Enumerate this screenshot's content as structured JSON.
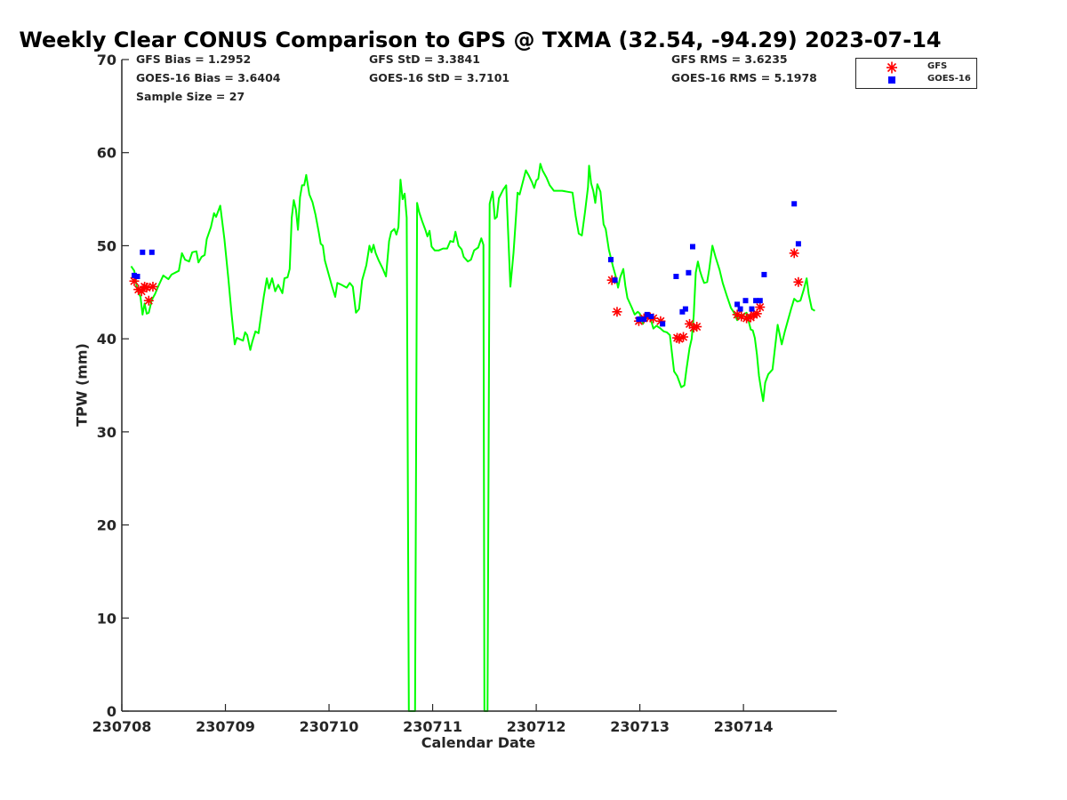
{
  "chart_data": {
    "type": "line",
    "title": "Weekly Clear CONUS Comparison to GPS @ TXMA (32.54, -94.29) 2023-07-14",
    "xlabel": "Calendar Date",
    "ylabel": "TPW (mm)",
    "xlim": [
      0,
      6.9
    ],
    "ylim": [
      0,
      70
    ],
    "x_ticks": [
      {
        "x": 0,
        "label": "230708"
      },
      {
        "x": 1,
        "label": "230709"
      },
      {
        "x": 2,
        "label": "230710"
      },
      {
        "x": 3,
        "label": "230711"
      },
      {
        "x": 4,
        "label": "230712"
      },
      {
        "x": 5,
        "label": "230713"
      },
      {
        "x": 6,
        "label": "230714"
      }
    ],
    "y_ticks": [
      0,
      10,
      20,
      30,
      40,
      50,
      60,
      70
    ],
    "stats": [
      {
        "label": "GFS Bias = 1.2952"
      },
      {
        "label": "GOES-16 Bias = 3.6404"
      },
      {
        "label": "Sample Size = 27"
      },
      {
        "label": "GFS StD = 3.3841"
      },
      {
        "label": "GOES-16 StD = 3.7101"
      },
      {
        "label": "GFS RMS = 3.6235"
      },
      {
        "label": "GOES-16 RMS = 5.1978"
      }
    ],
    "legend": {
      "placement": "top-right outside",
      "entries": [
        "GFS",
        "GOES-16"
      ]
    },
    "series": [
      {
        "name": "GPS",
        "style": "line",
        "color": "#00ff00",
        "points": [
          [
            0.09,
            47.8
          ],
          [
            0.12,
            47.3
          ],
          [
            0.15,
            45.2
          ],
          [
            0.18,
            44.5
          ],
          [
            0.2,
            42.6
          ],
          [
            0.22,
            43.8
          ],
          [
            0.24,
            42.7
          ],
          [
            0.26,
            42.8
          ],
          [
            0.29,
            44.2
          ],
          [
            0.32,
            44.8
          ],
          [
            0.35,
            45.6
          ],
          [
            0.4,
            46.8
          ],
          [
            0.45,
            46.4
          ],
          [
            0.48,
            46.9
          ],
          [
            0.55,
            47.3
          ],
          [
            0.58,
            49.2
          ],
          [
            0.61,
            48.5
          ],
          [
            0.65,
            48.3
          ],
          [
            0.68,
            49.3
          ],
          [
            0.72,
            49.4
          ],
          [
            0.74,
            48.2
          ],
          [
            0.77,
            48.8
          ],
          [
            0.8,
            49.0
          ],
          [
            0.82,
            50.7
          ],
          [
            0.86,
            52.0
          ],
          [
            0.89,
            53.5
          ],
          [
            0.91,
            53.1
          ],
          [
            0.95,
            54.3
          ],
          [
            0.99,
            50.7
          ],
          [
            1.03,
            46.3
          ],
          [
            1.06,
            42.6
          ],
          [
            1.09,
            39.4
          ],
          [
            1.11,
            40.1
          ],
          [
            1.17,
            39.8
          ],
          [
            1.19,
            40.7
          ],
          [
            1.21,
            40.4
          ],
          [
            1.24,
            38.8
          ],
          [
            1.26,
            39.7
          ],
          [
            1.29,
            40.8
          ],
          [
            1.32,
            40.6
          ],
          [
            1.37,
            44.5
          ],
          [
            1.4,
            46.5
          ],
          [
            1.42,
            45.4
          ],
          [
            1.45,
            46.5
          ],
          [
            1.48,
            45.1
          ],
          [
            1.51,
            45.8
          ],
          [
            1.55,
            44.9
          ],
          [
            1.57,
            46.5
          ],
          [
            1.6,
            46.6
          ],
          [
            1.62,
            47.5
          ],
          [
            1.64,
            53.0
          ],
          [
            1.66,
            54.9
          ],
          [
            1.68,
            53.9
          ],
          [
            1.7,
            51.7
          ],
          [
            1.72,
            55.2
          ],
          [
            1.74,
            56.5
          ],
          [
            1.76,
            56.5
          ],
          [
            1.78,
            57.6
          ],
          [
            1.81,
            55.5
          ],
          [
            1.84,
            54.7
          ],
          [
            1.87,
            53.3
          ],
          [
            1.9,
            51.5
          ],
          [
            1.92,
            50.2
          ],
          [
            1.94,
            50.0
          ],
          [
            1.96,
            48.4
          ],
          [
            2.0,
            46.8
          ],
          [
            2.03,
            45.6
          ],
          [
            2.06,
            44.5
          ],
          [
            2.08,
            46.0
          ],
          [
            2.12,
            45.8
          ],
          [
            2.17,
            45.5
          ],
          [
            2.2,
            46.0
          ],
          [
            2.23,
            45.6
          ],
          [
            2.26,
            42.8
          ],
          [
            2.29,
            43.2
          ],
          [
            2.32,
            46.3
          ],
          [
            2.36,
            47.9
          ],
          [
            2.39,
            50.0
          ],
          [
            2.41,
            49.3
          ],
          [
            2.43,
            50.1
          ],
          [
            2.45,
            49.2
          ],
          [
            2.48,
            48.4
          ],
          [
            2.52,
            47.5
          ],
          [
            2.55,
            46.7
          ],
          [
            2.58,
            50.5
          ],
          [
            2.6,
            51.5
          ],
          [
            2.63,
            51.8
          ],
          [
            2.65,
            51.2
          ],
          [
            2.67,
            52.0
          ],
          [
            2.69,
            57.1
          ],
          [
            2.71,
            55.0
          ],
          [
            2.73,
            55.6
          ],
          [
            2.75,
            53.0
          ],
          [
            2.77,
            0
          ],
          [
            2.79,
            0
          ],
          [
            2.81,
            0
          ],
          [
            2.83,
            0
          ],
          [
            2.85,
            54.6
          ],
          [
            2.87,
            53.6
          ],
          [
            2.9,
            52.6
          ],
          [
            2.93,
            51.7
          ],
          [
            2.95,
            51.0
          ],
          [
            2.97,
            51.6
          ],
          [
            2.99,
            49.9
          ],
          [
            3.02,
            49.5
          ],
          [
            3.06,
            49.5
          ],
          [
            3.1,
            49.7
          ],
          [
            3.14,
            49.7
          ],
          [
            3.17,
            50.5
          ],
          [
            3.2,
            50.4
          ],
          [
            3.22,
            51.5
          ],
          [
            3.25,
            50.0
          ],
          [
            3.28,
            49.6
          ],
          [
            3.3,
            48.8
          ],
          [
            3.34,
            48.3
          ],
          [
            3.37,
            48.5
          ],
          [
            3.4,
            49.5
          ],
          [
            3.44,
            49.8
          ],
          [
            3.47,
            50.8
          ],
          [
            3.49,
            50.1
          ],
          [
            3.5,
            0
          ],
          [
            3.51,
            0
          ],
          [
            3.53,
            0
          ],
          [
            3.55,
            54.5
          ],
          [
            3.57,
            55.4
          ],
          [
            3.58,
            55.8
          ],
          [
            3.6,
            52.9
          ],
          [
            3.62,
            53.1
          ],
          [
            3.64,
            55.1
          ],
          [
            3.68,
            56.0
          ],
          [
            3.71,
            56.5
          ],
          [
            3.75,
            45.6
          ],
          [
            3.78,
            49.2
          ],
          [
            3.8,
            52.4
          ],
          [
            3.82,
            55.7
          ],
          [
            3.84,
            55.5
          ],
          [
            3.86,
            56.4
          ],
          [
            3.9,
            58.1
          ],
          [
            3.93,
            57.5
          ],
          [
            3.96,
            56.8
          ],
          [
            3.98,
            56.2
          ],
          [
            4.0,
            57.0
          ],
          [
            4.02,
            57.2
          ],
          [
            4.04,
            58.8
          ],
          [
            4.06,
            58.1
          ],
          [
            4.1,
            57.3
          ],
          [
            4.13,
            56.5
          ],
          [
            4.15,
            56.2
          ],
          [
            4.17,
            55.9
          ],
          [
            4.2,
            55.9
          ],
          [
            4.25,
            55.9
          ],
          [
            4.3,
            55.8
          ],
          [
            4.35,
            55.7
          ],
          [
            4.38,
            53.2
          ],
          [
            4.41,
            51.3
          ],
          [
            4.44,
            51.1
          ],
          [
            4.47,
            53.6
          ],
          [
            4.5,
            56.3
          ],
          [
            4.51,
            58.6
          ],
          [
            4.53,
            56.7
          ],
          [
            4.55,
            55.9
          ],
          [
            4.57,
            54.6
          ],
          [
            4.59,
            56.6
          ],
          [
            4.62,
            55.8
          ],
          [
            4.65,
            52.3
          ],
          [
            4.67,
            51.8
          ],
          [
            4.7,
            49.6
          ],
          [
            4.74,
            47.8
          ],
          [
            4.77,
            46.6
          ],
          [
            4.79,
            45.5
          ],
          [
            4.81,
            46.6
          ],
          [
            4.84,
            47.5
          ],
          [
            4.86,
            45.7
          ],
          [
            4.88,
            44.4
          ],
          [
            4.92,
            43.4
          ],
          [
            4.95,
            42.6
          ],
          [
            4.98,
            42.9
          ],
          [
            5.0,
            42.7
          ],
          [
            5.03,
            41.6
          ],
          [
            5.05,
            42.2
          ],
          [
            5.07,
            42.6
          ],
          [
            5.1,
            42.3
          ],
          [
            5.13,
            41.1
          ],
          [
            5.16,
            41.4
          ],
          [
            5.2,
            41.1
          ],
          [
            5.23,
            40.8
          ],
          [
            5.26,
            40.7
          ],
          [
            5.29,
            40.4
          ],
          [
            5.33,
            36.5
          ],
          [
            5.36,
            36.0
          ],
          [
            5.4,
            34.8
          ],
          [
            5.43,
            35.0
          ],
          [
            5.45,
            36.7
          ],
          [
            5.48,
            39.0
          ],
          [
            5.5,
            40.0
          ],
          [
            5.52,
            42.5
          ],
          [
            5.54,
            47.1
          ],
          [
            5.56,
            48.3
          ],
          [
            5.58,
            47.3
          ],
          [
            5.6,
            46.6
          ],
          [
            5.62,
            46.0
          ],
          [
            5.65,
            46.1
          ],
          [
            5.67,
            47.5
          ],
          [
            5.7,
            50.0
          ],
          [
            5.73,
            48.8
          ],
          [
            5.77,
            47.4
          ],
          [
            5.8,
            46.0
          ],
          [
            5.84,
            44.6
          ],
          [
            5.88,
            43.3
          ],
          [
            5.91,
            42.8
          ],
          [
            5.94,
            42.0
          ],
          [
            5.97,
            42.4
          ],
          [
            6.0,
            42.6
          ],
          [
            6.03,
            42.8
          ],
          [
            6.05,
            41.9
          ],
          [
            6.07,
            41.0
          ],
          [
            6.09,
            40.9
          ],
          [
            6.11,
            40.1
          ],
          [
            6.13,
            38.3
          ],
          [
            6.15,
            36.0
          ],
          [
            6.17,
            34.6
          ],
          [
            6.19,
            33.3
          ],
          [
            6.21,
            35.3
          ],
          [
            6.24,
            36.2
          ],
          [
            6.28,
            36.7
          ],
          [
            6.33,
            41.5
          ],
          [
            6.37,
            39.4
          ],
          [
            6.4,
            40.8
          ],
          [
            6.43,
            42.0
          ],
          [
            6.46,
            43.2
          ],
          [
            6.49,
            44.3
          ],
          [
            6.52,
            44.0
          ],
          [
            6.55,
            44.1
          ],
          [
            6.58,
            45.2
          ],
          [
            6.61,
            46.5
          ],
          [
            6.63,
            44.8
          ],
          [
            6.66,
            43.2
          ],
          [
            6.69,
            43.0
          ]
        ]
      },
      {
        "name": "GFS",
        "style": "asterisk",
        "color": "#ff0000",
        "points": [
          [
            0.12,
            46.2
          ],
          [
            0.16,
            45.3
          ],
          [
            0.19,
            45.1
          ],
          [
            0.22,
            45.6
          ],
          [
            0.24,
            45.5
          ],
          [
            0.26,
            44.1
          ],
          [
            0.3,
            45.6
          ],
          [
            4.73,
            46.3
          ],
          [
            4.78,
            42.9
          ],
          [
            4.99,
            41.9
          ],
          [
            5.04,
            42.2
          ],
          [
            5.1,
            42.3
          ],
          [
            5.13,
            42.2
          ],
          [
            5.2,
            41.9
          ],
          [
            5.36,
            40.1
          ],
          [
            5.38,
            40.0
          ],
          [
            5.42,
            40.2
          ],
          [
            5.48,
            41.6
          ],
          [
            5.52,
            41.2
          ],
          [
            5.55,
            41.3
          ],
          [
            5.94,
            42.6
          ],
          [
            5.98,
            42.4
          ],
          [
            6.03,
            42.2
          ],
          [
            6.07,
            42.3
          ],
          [
            6.1,
            42.6
          ],
          [
            6.13,
            42.7
          ],
          [
            6.16,
            43.4
          ],
          [
            6.49,
            49.2
          ],
          [
            6.53,
            46.1
          ]
        ]
      },
      {
        "name": "GOES-16",
        "style": "square",
        "color": "#0000ff",
        "points": [
          [
            0.12,
            46.8
          ],
          [
            0.15,
            46.7
          ],
          [
            0.2,
            49.3
          ],
          [
            0.29,
            49.3
          ],
          [
            4.72,
            48.5
          ],
          [
            4.76,
            46.3
          ],
          [
            4.99,
            42.1
          ],
          [
            5.04,
            42.1
          ],
          [
            5.07,
            42.6
          ],
          [
            5.11,
            42.4
          ],
          [
            5.22,
            41.6
          ],
          [
            5.35,
            46.7
          ],
          [
            5.41,
            42.9
          ],
          [
            5.44,
            43.2
          ],
          [
            5.47,
            47.1
          ],
          [
            5.51,
            49.9
          ],
          [
            5.94,
            43.7
          ],
          [
            5.97,
            43.2
          ],
          [
            6.02,
            44.1
          ],
          [
            6.08,
            43.2
          ],
          [
            6.12,
            44.1
          ],
          [
            6.16,
            44.1
          ],
          [
            6.2,
            46.9
          ],
          [
            6.49,
            54.5
          ],
          [
            6.53,
            50.2
          ]
        ]
      }
    ]
  }
}
